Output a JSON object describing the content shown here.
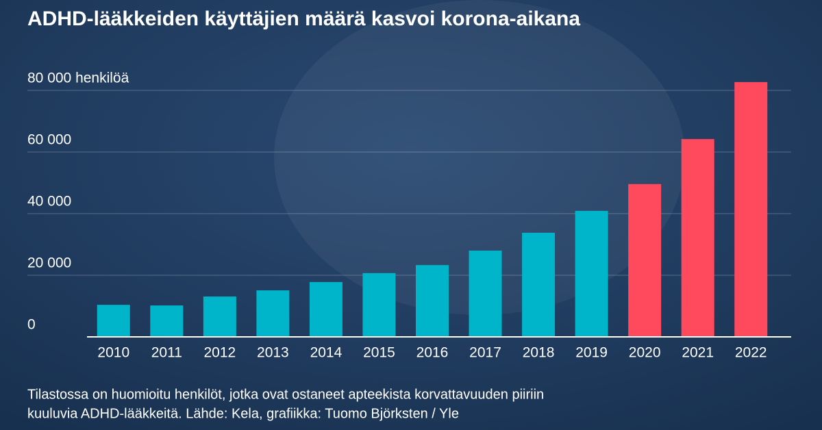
{
  "chart_data": {
    "type": "bar",
    "title": "ADHD-lääkkeiden käyttäjien määrä kasvoi korona-aikana",
    "categories": [
      "2010",
      "2011",
      "2012",
      "2013",
      "2014",
      "2015",
      "2016",
      "2017",
      "2018",
      "2019",
      "2020",
      "2021",
      "2022"
    ],
    "values": [
      10400,
      10200,
      13100,
      15100,
      17800,
      20700,
      23300,
      28000,
      33800,
      40900,
      49600,
      64200,
      82700
    ],
    "colors": [
      "#00b5c9",
      "#00b5c9",
      "#00b5c9",
      "#00b5c9",
      "#00b5c9",
      "#00b5c9",
      "#00b5c9",
      "#00b5c9",
      "#00b5c9",
      "#00b5c9",
      "#ff4a5e",
      "#ff4a5e",
      "#ff4a5e"
    ],
    "ylim": [
      0,
      85000
    ],
    "yticks": [
      0,
      {
        "value": 20000,
        "label": "20 000"
      },
      {
        "value": 40000,
        "label": "40 000"
      },
      {
        "value": 60000,
        "label": "60 000"
      },
      {
        "value": 80000,
        "label": "80 000 henkilöä"
      }
    ],
    "grid": true,
    "note": [
      "Tilastossa on huomioitu henkilöt, jotka ovat ostaneet apteekista korvattavuuden piiriin",
      "kuuluvia ADHD-lääkkeitä. Lähde: Kela, grafiikka: Tuomo Björksten / Yle"
    ]
  }
}
